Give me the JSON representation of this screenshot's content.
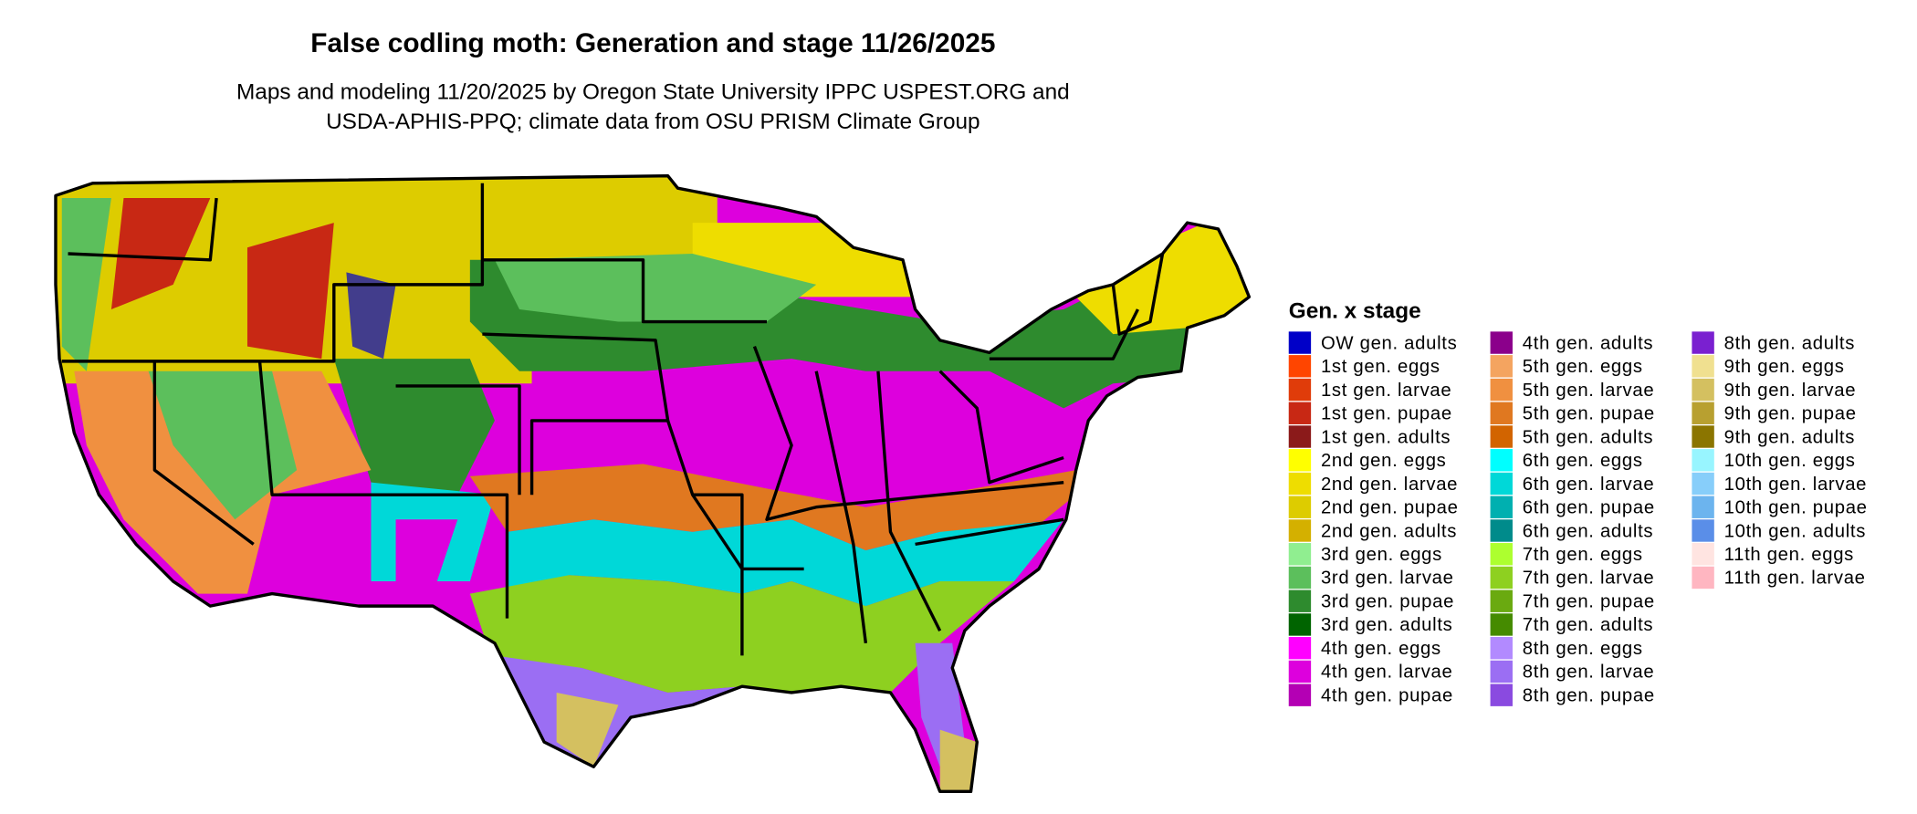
{
  "header": {
    "title": "False codling moth: Generation and stage 11/26/2025",
    "subtitle": [
      "Maps and modeling 11/20/2025 by Oregon State University IPPC USPEST.ORG and",
      "USDA-APHIS-PPQ; climate data from OSU PRISM Climate Group"
    ]
  },
  "legend": {
    "title": "Gen. x stage",
    "items": [
      {
        "label": "OW gen. adults",
        "color": "#0000c8"
      },
      {
        "label": "1st gen. eggs",
        "color": "#ff4500"
      },
      {
        "label": "1st gen. larvae",
        "color": "#e03c0a"
      },
      {
        "label": "1st gen. pupae",
        "color": "#c82814"
      },
      {
        "label": "1st gen. adults",
        "color": "#8b1a1a"
      },
      {
        "label": "2nd gen. eggs",
        "color": "#ffff00"
      },
      {
        "label": "2nd gen. larvae",
        "color": "#eedd00"
      },
      {
        "label": "2nd gen. pupae",
        "color": "#ddcc00"
      },
      {
        "label": "2nd gen. adults",
        "color": "#d4b000"
      },
      {
        "label": "3rd gen. eggs",
        "color": "#90ee90"
      },
      {
        "label": "3rd gen. larvae",
        "color": "#5cbf5c"
      },
      {
        "label": "3rd gen. pupae",
        "color": "#2e8b2e"
      },
      {
        "label": "3rd gen. adults",
        "color": "#006400"
      },
      {
        "label": "4th gen. eggs",
        "color": "#ff00ff"
      },
      {
        "label": "4th gen. larvae",
        "color": "#dd00dd"
      },
      {
        "label": "4th gen. pupae",
        "color": "#b400b4"
      },
      {
        "label": "4th gen. adults",
        "color": "#8b008b"
      },
      {
        "label": "5th gen. eggs",
        "color": "#f4a460"
      },
      {
        "label": "5th gen. larvae",
        "color": "#f09040"
      },
      {
        "label": "5th gen. pupae",
        "color": "#e07820"
      },
      {
        "label": "5th gen. adults",
        "color": "#d26400"
      },
      {
        "label": "6th gen. eggs",
        "color": "#00ffff"
      },
      {
        "label": "6th gen. larvae",
        "color": "#00d8d8"
      },
      {
        "label": "6th gen. pupae",
        "color": "#00b0b0"
      },
      {
        "label": "6th gen. adults",
        "color": "#008b8b"
      },
      {
        "label": "7th gen. eggs",
        "color": "#adff2f"
      },
      {
        "label": "7th gen. larvae",
        "color": "#8ed020"
      },
      {
        "label": "7th gen. pupae",
        "color": "#6aaa10"
      },
      {
        "label": "7th gen. adults",
        "color": "#458b00"
      },
      {
        "label": "8th gen. eggs",
        "color": "#b28aff"
      },
      {
        "label": "8th gen. larvae",
        "color": "#9b6ef3"
      },
      {
        "label": "8th gen. pupae",
        "color": "#8a4ae0"
      },
      {
        "label": "8th gen. adults",
        "color": "#7a20d0"
      },
      {
        "label": "9th gen. eggs",
        "color": "#f0e090"
      },
      {
        "label": "9th gen. larvae",
        "color": "#d4c060"
      },
      {
        "label": "9th gen. pupae",
        "color": "#b8a030"
      },
      {
        "label": "9th gen. adults",
        "color": "#8b7500"
      },
      {
        "label": "10th gen. eggs",
        "color": "#98f5ff"
      },
      {
        "label": "10th gen. larvae",
        "color": "#87cefa"
      },
      {
        "label": "10th gen. pupae",
        "color": "#6cb4ee"
      },
      {
        "label": "10th gen. adults",
        "color": "#5a8ee8"
      },
      {
        "label": "11th gen. eggs",
        "color": "#ffe4e1"
      },
      {
        "label": "11th gen. larvae",
        "color": "#ffb6c1"
      }
    ]
  }
}
